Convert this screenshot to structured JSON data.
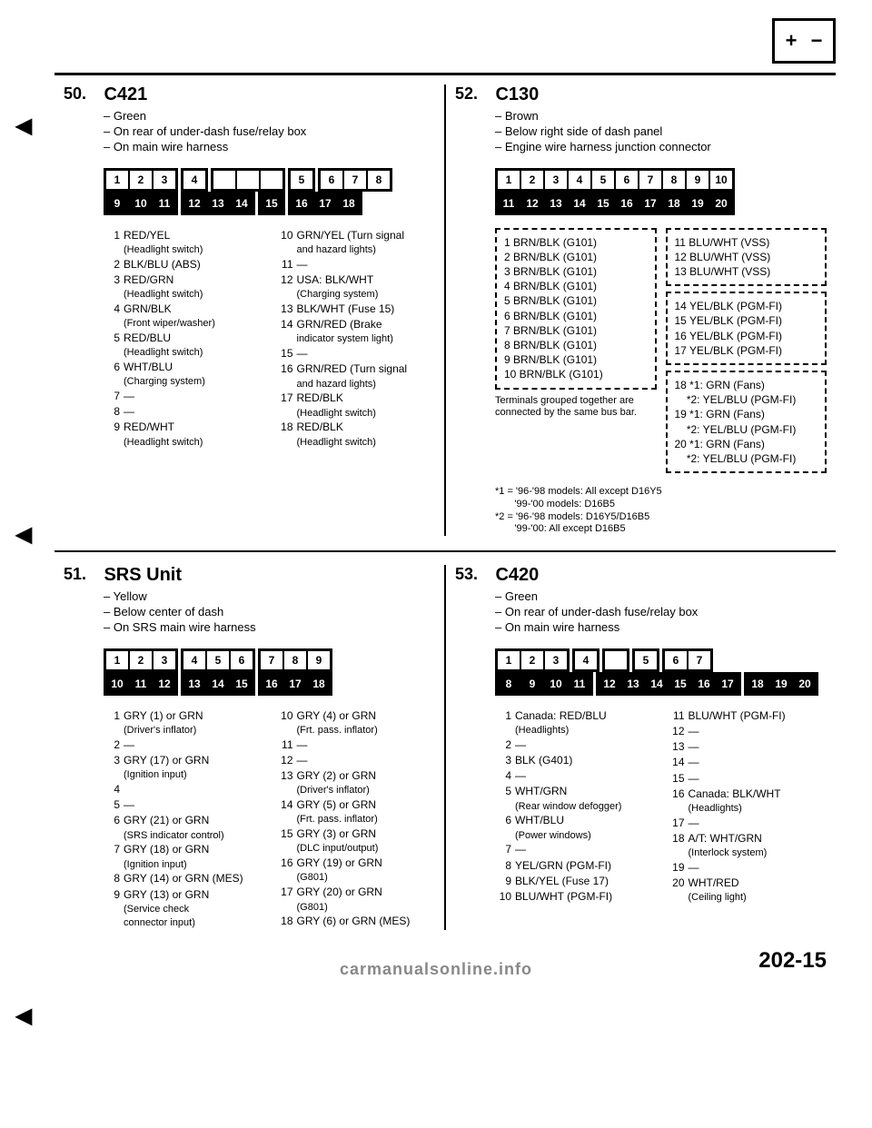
{
  "page_number": "202-15",
  "watermark": "carmanualsonline.info",
  "sections": {
    "s50": {
      "num": "50.",
      "title": "C421",
      "notes": [
        "Green",
        "On rear of under-dash fuse/relay box",
        "On main wire harness"
      ],
      "conn": {
        "top": [
          [
            "1",
            "2",
            "3"
          ],
          [
            "4"
          ],
          [
            "",
            "",
            ""
          ],
          [
            "5"
          ],
          [
            "6",
            "7",
            "8"
          ]
        ],
        "bot": [
          [
            "9",
            "10",
            "11"
          ],
          [
            "12",
            "13",
            "14"
          ],
          [
            "15"
          ],
          [
            "16",
            "17",
            "18"
          ]
        ]
      },
      "pins_left": [
        {
          "n": "1",
          "t": "RED/YEL",
          "s": "(Headlight switch)"
        },
        {
          "n": "2",
          "t": "BLK/BLU (ABS)"
        },
        {
          "n": "3",
          "t": "RED/GRN",
          "s": "(Headlight switch)"
        },
        {
          "n": "4",
          "t": "GRN/BLK",
          "s": "(Front wiper/washer)"
        },
        {
          "n": "5",
          "t": "RED/BLU",
          "s": "(Headlight switch)"
        },
        {
          "n": "6",
          "t": "WHT/BLU",
          "s": "(Charging system)"
        },
        {
          "n": "7",
          "t": "—"
        },
        {
          "n": "8",
          "t": "—"
        },
        {
          "n": "9",
          "t": "RED/WHT",
          "s": "(Headlight switch)"
        }
      ],
      "pins_right": [
        {
          "n": "10",
          "t": "GRN/YEL (Turn signal",
          "s": "and hazard lights)"
        },
        {
          "n": "11",
          "t": "—"
        },
        {
          "n": "12",
          "t": "USA: BLK/WHT",
          "s": "(Charging system)"
        },
        {
          "n": "13",
          "t": "BLK/WHT (Fuse 15)"
        },
        {
          "n": "14",
          "t": "GRN/RED (Brake",
          "s": "indicator system light)"
        },
        {
          "n": "15",
          "t": "—"
        },
        {
          "n": "16",
          "t": "GRN/RED (Turn signal",
          "s": "and hazard lights)"
        },
        {
          "n": "17",
          "t": "RED/BLK",
          "s": "(Headlight switch)"
        },
        {
          "n": "18",
          "t": "RED/BLK",
          "s": "(Headlight switch)"
        }
      ]
    },
    "s51": {
      "num": "51.",
      "title": "SRS Unit",
      "notes": [
        "Yellow",
        "Below center of dash",
        "On SRS main wire harness"
      ],
      "conn": {
        "top": [
          [
            "1",
            "2",
            "3"
          ],
          [
            "4",
            "5",
            "6"
          ],
          [
            "7",
            "8",
            "9"
          ]
        ],
        "bot": [
          [
            "10",
            "11",
            "12"
          ],
          [
            "13",
            "14",
            "15"
          ],
          [
            "16",
            "17",
            "18"
          ]
        ]
      },
      "pins_left": [
        {
          "n": "1",
          "t": "GRY (1) or GRN",
          "s": "(Driver's inflator)"
        },
        {
          "n": "2",
          "t": "—"
        },
        {
          "n": "3",
          "t": "GRY (17) or GRN",
          "s": "(Ignition input)"
        },
        {
          "n": "4",
          "t": ""
        },
        {
          "n": "5",
          "t": "—"
        },
        {
          "n": "6",
          "t": "GRY (21) or GRN",
          "s": "(SRS indicator control)"
        },
        {
          "n": "7",
          "t": "GRY (18) or GRN",
          "s": "(Ignition input)"
        },
        {
          "n": "8",
          "t": "GRY (14) or GRN (MES)"
        },
        {
          "n": "9",
          "t": "GRY (13) or GRN",
          "s": "(Service check",
          "s2": "connector input)"
        }
      ],
      "pins_right": [
        {
          "n": "10",
          "t": "GRY (4) or GRN",
          "s": "(Frt. pass. inflator)"
        },
        {
          "n": "11",
          "t": "—"
        },
        {
          "n": "12",
          "t": "—"
        },
        {
          "n": "13",
          "t": "GRY (2) or GRN",
          "s": "(Driver's inflator)"
        },
        {
          "n": "14",
          "t": "GRY (5) or GRN",
          "s": "(Frt. pass. inflator)"
        },
        {
          "n": "15",
          "t": "GRY (3) or GRN",
          "s": "(DLC input/output)"
        },
        {
          "n": "16",
          "t": "GRY (19) or GRN",
          "s": "(G801)"
        },
        {
          "n": "17",
          "t": "GRY (20) or GRN",
          "s": "(G801)"
        },
        {
          "n": "18",
          "t": "GRY (6) or GRN (MES)"
        }
      ]
    },
    "s52": {
      "num": "52.",
      "title": "C130",
      "notes": [
        "Brown",
        "Below right side of dash panel",
        "Engine wire harness junction connector"
      ],
      "conn": {
        "top": [
          [
            "1",
            "2",
            "3",
            "4",
            "5",
            "6",
            "7",
            "8",
            "9",
            "10"
          ]
        ],
        "bot": [
          [
            "11",
            "12",
            "13",
            "14",
            "15",
            "16",
            "17",
            "18",
            "19",
            "20"
          ]
        ]
      },
      "box1_left": [
        "1 BRN/BLK (G101)",
        "2 BRN/BLK (G101)",
        "3 BRN/BLK (G101)",
        "4 BRN/BLK (G101)",
        "5 BRN/BLK (G101)",
        "6 BRN/BLK (G101)",
        "7 BRN/BLK (G101)",
        "8 BRN/BLK (G101)",
        "9 BRN/BLK (G101)",
        "10 BRN/BLK (G101)"
      ],
      "box1_right_a": [
        "11 BLU/WHT (VSS)",
        "12 BLU/WHT (VSS)",
        "13 BLU/WHT (VSS)"
      ],
      "box1_right_b": [
        "14 YEL/BLK (PGM-FI)",
        "15 YEL/BLK (PGM-FI)",
        "16 YEL/BLK (PGM-FI)",
        "17 YEL/BLK (PGM-FI)"
      ],
      "box1_right_c": [
        "18 *1: GRN (Fans)",
        "    *2: YEL/BLU (PGM-FI)",
        "19 *1: GRN (Fans)",
        "    *2: YEL/BLU (PGM-FI)",
        "20 *1: GRN (Fans)",
        "    *2: YEL/BLU (PGM-FI)"
      ],
      "term_note": "Terminals grouped together are connected by the same bus bar.",
      "foot": [
        "*1 = '96-'98 models: All except D16Y5",
        "       '99-'00 models: D16B5",
        "*2 = '96-'98 models: D16Y5/D16B5",
        "       '99-'00: All except D16B5"
      ]
    },
    "s53": {
      "num": "53.",
      "title": "C420",
      "notes": [
        "Green",
        "On rear of under-dash fuse/relay box",
        "On main wire harness"
      ],
      "conn": {
        "top": [
          [
            "1",
            "2",
            "3"
          ],
          [
            "4"
          ],
          [
            ""
          ],
          [
            "5"
          ],
          [
            "6",
            "7"
          ]
        ],
        "bot": [
          [
            "8",
            "9",
            "10",
            "11"
          ],
          [
            "12",
            "13",
            "14",
            "15",
            "16",
            "17"
          ],
          [
            "18",
            "19",
            "20"
          ]
        ]
      },
      "pins_left": [
        {
          "n": "1",
          "t": "Canada: RED/BLU",
          "s": "(Headlights)"
        },
        {
          "n": "2",
          "t": "—"
        },
        {
          "n": "3",
          "t": "BLK (G401)"
        },
        {
          "n": "4",
          "t": "—"
        },
        {
          "n": "5",
          "t": "WHT/GRN",
          "s": "(Rear window defogger)"
        },
        {
          "n": "6",
          "t": "WHT/BLU",
          "s": "(Power windows)"
        },
        {
          "n": "7",
          "t": "—"
        },
        {
          "n": "8",
          "t": "YEL/GRN (PGM-FI)"
        },
        {
          "n": "9",
          "t": "BLK/YEL (Fuse 17)"
        },
        {
          "n": "10",
          "t": "BLU/WHT (PGM-FI)"
        }
      ],
      "pins_right": [
        {
          "n": "11",
          "t": "BLU/WHT (PGM-FI)"
        },
        {
          "n": "12",
          "t": "—"
        },
        {
          "n": "13",
          "t": "—"
        },
        {
          "n": "14",
          "t": "—"
        },
        {
          "n": "15",
          "t": "—"
        },
        {
          "n": "16",
          "t": "Canada: BLK/WHT",
          "s": "(Headlights)"
        },
        {
          "n": "17",
          "t": "—"
        },
        {
          "n": "18",
          "t": "A/T: WHT/GRN",
          "s": "(Interlock system)"
        },
        {
          "n": "19",
          "t": "—"
        },
        {
          "n": "20",
          "t": "WHT/RED",
          "s": "(Ceiling light)"
        }
      ]
    }
  }
}
